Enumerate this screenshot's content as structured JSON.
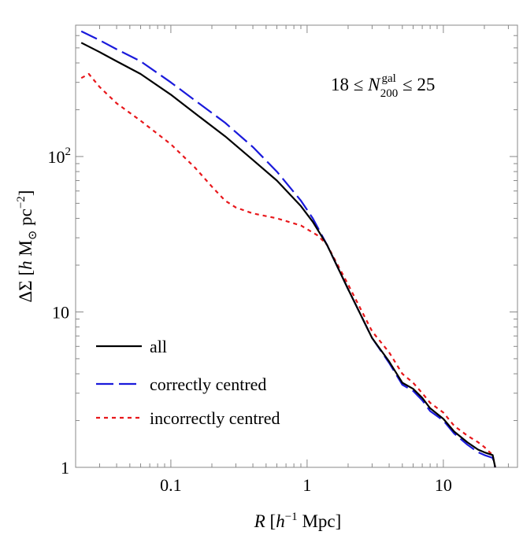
{
  "chart_data": {
    "type": "line",
    "xscale": "log",
    "yscale": "log",
    "xlim": [
      0.02,
      35
    ],
    "ylim": [
      1,
      700
    ],
    "xticks": [
      {
        "value": 0.1,
        "label": "0.1"
      },
      {
        "value": 1,
        "label": "1"
      },
      {
        "value": 10,
        "label": "10"
      }
    ],
    "yticks": [
      {
        "value": 1,
        "label": "1"
      },
      {
        "value": 10,
        "label": "10"
      },
      {
        "value": 100,
        "label": "10",
        "sup": "2"
      }
    ],
    "xlabel": {
      "var": "R",
      "open": " [",
      "h": "h",
      "exp": "−1",
      "unit": " Mpc]"
    },
    "ylabel": {
      "text": "ΔΣ [",
      "h": "h",
      "m": " M",
      "sun": "⊙",
      "unit": " pc",
      "exp": "−2",
      "close": "]"
    },
    "annotation": {
      "lhs": "18 ≤ ",
      "var": "N",
      "sup": "gal",
      "sub": "200",
      "rhs": " ≤ 25"
    },
    "legend_position": "bottom-left",
    "series": [
      {
        "name": "all",
        "color": "#000000",
        "style": "solid",
        "x": [
          0.022,
          0.03,
          0.04,
          0.06,
          0.1,
          0.15,
          0.25,
          0.4,
          0.6,
          0.9,
          1.1,
          1.4,
          2.0,
          3.0,
          4.0,
          5.0,
          6.0,
          7.0,
          8.0,
          10.0,
          12.0,
          15.0,
          18.0,
          20.0,
          23.0,
          24.0
        ],
        "values": [
          540,
          470,
          410,
          340,
          250,
          190,
          135,
          95,
          70,
          48,
          38,
          27,
          14,
          6.8,
          4.8,
          3.5,
          3.2,
          2.8,
          2.4,
          2.05,
          1.7,
          1.45,
          1.3,
          1.25,
          1.2,
          1.0
        ]
      },
      {
        "name": "correctly centred",
        "color": "#1a1adb",
        "style": "dashed",
        "x": [
          0.022,
          0.03,
          0.04,
          0.06,
          0.1,
          0.15,
          0.25,
          0.4,
          0.6,
          0.9,
          1.1,
          1.4,
          2.0,
          3.0,
          4.0,
          5.0,
          6.0,
          7.0,
          8.0,
          10.0,
          12.0,
          15.0,
          18.0,
          20.0,
          23.0,
          24.0
        ],
        "values": [
          640,
          560,
          490,
          410,
          300,
          230,
          165,
          115,
          80,
          52,
          40,
          27,
          14,
          6.8,
          4.7,
          3.4,
          3.1,
          2.7,
          2.3,
          2.0,
          1.65,
          1.4,
          1.25,
          1.2,
          1.15,
          1.0
        ]
      },
      {
        "name": "incorrectly centred",
        "color": "#e8171b",
        "style": "dotted",
        "x": [
          0.022,
          0.025,
          0.03,
          0.04,
          0.06,
          0.1,
          0.15,
          0.2,
          0.25,
          0.3,
          0.4,
          0.6,
          0.9,
          1.2,
          1.4,
          2.0,
          3.0,
          4.0,
          5.0,
          6.0,
          7.0,
          8.0,
          10.0,
          12.0,
          15.0,
          18.0,
          20.0,
          23.0,
          24.0
        ],
        "values": [
          320,
          340,
          280,
          220,
          170,
          120,
          85,
          64,
          52,
          47,
          43,
          40,
          36,
          31,
          27,
          15,
          7.5,
          5.5,
          4.0,
          3.5,
          3.0,
          2.6,
          2.25,
          1.85,
          1.6,
          1.45,
          1.35,
          1.2,
          1.0
        ]
      }
    ]
  }
}
